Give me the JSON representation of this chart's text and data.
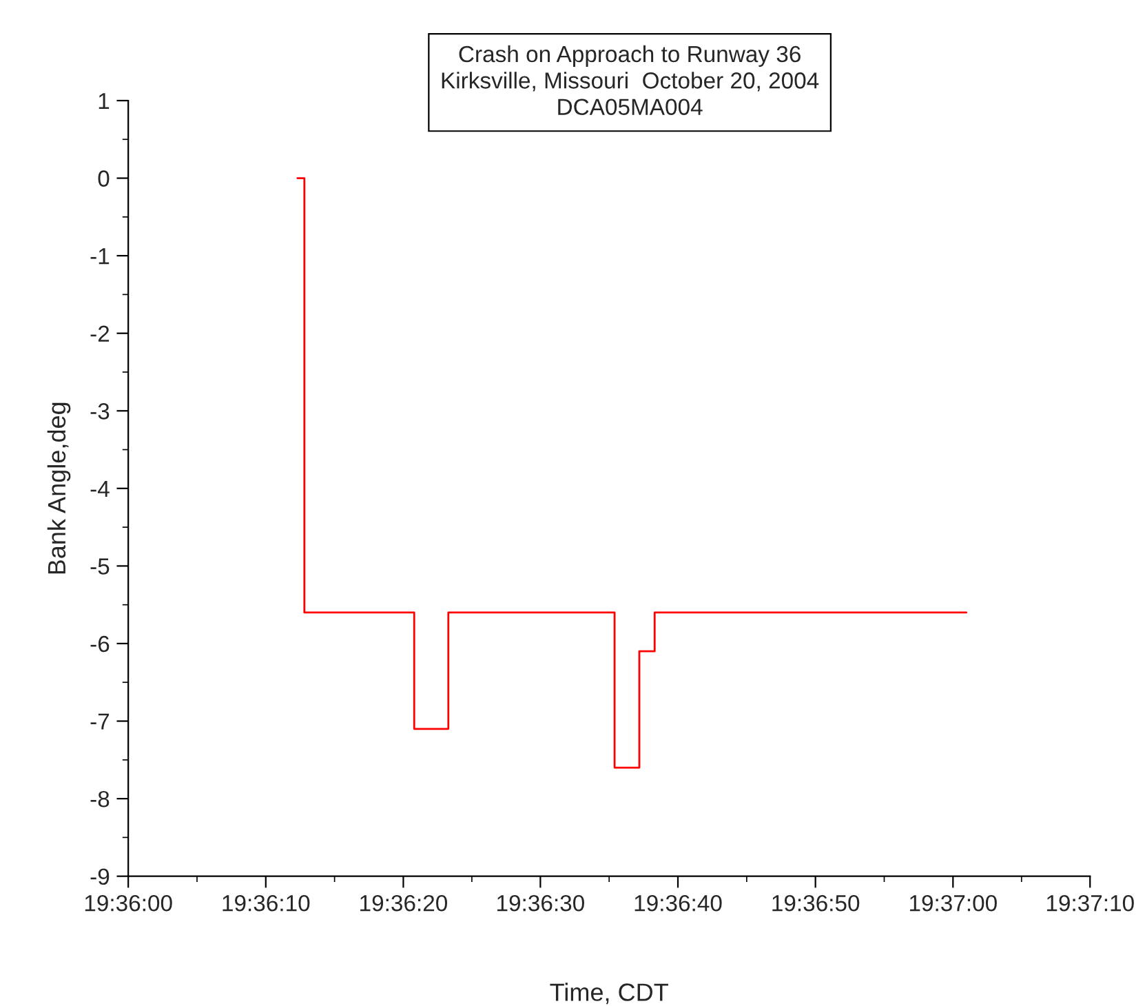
{
  "chart_data": {
    "type": "step",
    "title": "Crash on Approach to Runway 36",
    "subtitle": "Kirksville, Missouri  October 20, 2004\nDCA05MA004",
    "xlabel": "Time, CDT",
    "ylabel": "Bank Angle,deg",
    "x": [
      19.60342,
      19.60356,
      19.60578,
      19.60647,
      19.60983,
      19.61033,
      19.61064,
      19.61694
    ],
    "series": [
      {
        "color": "#ff0000",
        "values": [
          0,
          -5.6,
          -7.1,
          -5.6,
          -7.6,
          -6.1,
          -5.6,
          -5.6
        ]
      }
    ],
    "xlim": [
      19.6,
      19.61944
    ],
    "xticks": [
      {
        "value": 19.6,
        "label": "19:36:00"
      },
      {
        "value": 19.60278,
        "label": "19:36:10"
      },
      {
        "value": 19.60556,
        "label": "19:36:20"
      },
      {
        "value": 19.60833,
        "label": "19:36:30"
      },
      {
        "value": 19.61111,
        "label": "19:36:40"
      },
      {
        "value": 19.61389,
        "label": "19:36:50"
      },
      {
        "value": 19.61667,
        "label": "19:37:00"
      },
      {
        "value": 19.61944,
        "label": "19:37:10"
      }
    ],
    "ylim": [
      -9,
      1
    ],
    "yticks": [
      -9,
      -8,
      -7,
      -6,
      -5,
      -4,
      -3,
      -2,
      -1,
      0,
      1
    ],
    "grid": false,
    "legend": false,
    "marker": "none",
    "line_style": "solid"
  }
}
